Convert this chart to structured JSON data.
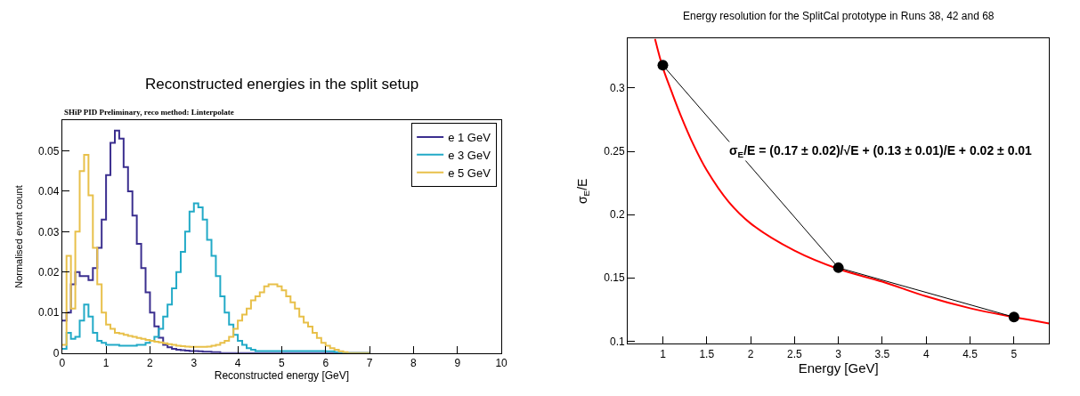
{
  "chart_data": [
    {
      "type": "histogram",
      "title": "Reconstructed energies in the split setup",
      "subtitle": "SHiP PID Preliminary, reco method: Linterpolate",
      "xlabel": "Reconstructed energy [GeV]",
      "ylabel": "Normalised event count",
      "legend": "top right",
      "bins": [
        0,
        0.1,
        0.2,
        0.3,
        0.4,
        0.5,
        0.6,
        0.7,
        0.8,
        0.9,
        1,
        1.1,
        1.2,
        1.3,
        1.4,
        1.5,
        1.6,
        1.7,
        1.8,
        1.9,
        2,
        2.1,
        2.2,
        2.3,
        2.4,
        2.5,
        2.6,
        2.7,
        2.8,
        2.9,
        3,
        3.1,
        3.2,
        3.3,
        3.4,
        3.5,
        3.6,
        3.7,
        3.8,
        3.9,
        4,
        4.1,
        4.2,
        4.3,
        4.4,
        4.5,
        4.6,
        4.7,
        4.8,
        4.9,
        5,
        5.1,
        5.2,
        5.3,
        5.4,
        5.5,
        5.6,
        5.7,
        5.8,
        5.9,
        6,
        6.1,
        6.2,
        6.3,
        6.4,
        6.5,
        6.6,
        6.7,
        6.8,
        6.9,
        7
      ],
      "xlim": [
        0,
        10
      ],
      "xticks": [
        0,
        1,
        2,
        3,
        4,
        5,
        6,
        7,
        8,
        9,
        10
      ],
      "ylim": [
        0,
        0.0575
      ],
      "yticks": [
        0,
        0.01,
        0.02,
        0.03,
        0.04,
        0.05
      ],
      "series": [
        {
          "name": "e 1 GeV",
          "color": "#3b2f8f",
          "values": [
            0.008,
            0.01,
            0.017,
            0.02,
            0.019,
            0.019,
            0.018,
            0.021,
            0.026,
            0.033,
            0.044,
            0.052,
            0.055,
            0.053,
            0.046,
            0.04,
            0.034,
            0.027,
            0.021,
            0.015,
            0.01,
            0.0066,
            0.0038,
            0.002,
            0.0014,
            0.001,
            0.0008,
            0.0007,
            0.0006,
            0.0005,
            0.0005,
            0.0004,
            0.0003,
            0.0003,
            0.0002,
            0.0002,
            0,
            0,
            0,
            0,
            0,
            0,
            0,
            0,
            0,
            0,
            0,
            0,
            0,
            0,
            0,
            0,
            0,
            0,
            0,
            0,
            0,
            0,
            0,
            0,
            0,
            0,
            0,
            0,
            0,
            0,
            0,
            0,
            0,
            0
          ]
        },
        {
          "name": "e 3 GeV",
          "color": "#22aac7",
          "values": [
            0.001,
            0.005,
            0.0035,
            0.004,
            0.008,
            0.012,
            0.009,
            0.005,
            0.003,
            0.0025,
            0.002,
            0.002,
            0.002,
            0.0018,
            0.0018,
            0.0018,
            0.0018,
            0.002,
            0.002,
            0.0025,
            0.003,
            0.004,
            0.006,
            0.009,
            0.012,
            0.016,
            0.02,
            0.025,
            0.03,
            0.035,
            0.037,
            0.036,
            0.033,
            0.028,
            0.024,
            0.019,
            0.014,
            0.01,
            0.007,
            0.0045,
            0.003,
            0.002,
            0.0012,
            0.0008,
            0.0005,
            0.0005,
            0.0005,
            0.0005,
            0.0005,
            0.0005,
            0.0005,
            0.0005,
            0.0005,
            0.0005,
            0.0005,
            0.0005,
            0.0005,
            0.0005,
            0.0005,
            0.0005,
            0.0004,
            0.0004,
            0.0002,
            0,
            0,
            0,
            0,
            0,
            0,
            0
          ]
        },
        {
          "name": "e 5 GeV",
          "color": "#e8c04a",
          "values": [
            0.002,
            0.024,
            0.011,
            0.03,
            0.045,
            0.049,
            0.039,
            0.026,
            0.017,
            0.01,
            0.007,
            0.006,
            0.005,
            0.0048,
            0.0045,
            0.0042,
            0.004,
            0.0037,
            0.0035,
            0.0032,
            0.003,
            0.0028,
            0.0026,
            0.0024,
            0.0022,
            0.002,
            0.0018,
            0.0017,
            0.0016,
            0.0015,
            0.0015,
            0.0015,
            0.0015,
            0.0016,
            0.0018,
            0.002,
            0.0025,
            0.003,
            0.004,
            0.006,
            0.008,
            0.0095,
            0.011,
            0.013,
            0.014,
            0.015,
            0.0165,
            0.017,
            0.017,
            0.0165,
            0.0155,
            0.014,
            0.0125,
            0.011,
            0.009,
            0.0075,
            0.0065,
            0.005,
            0.0037,
            0.0025,
            0.0018,
            0.0012,
            0.0008,
            0.0004,
            0.0002,
            0,
            0,
            0,
            0,
            0
          ]
        }
      ]
    },
    {
      "type": "line",
      "title": "Energy resolution for the SplitCal prototype in Runs 38, 42 and 68",
      "xlabel": "Energy [GeV]",
      "ylabel": "σ$_{E}$/E",
      "legend": false,
      "xlim": [
        0.6,
        5.4
      ],
      "xticks": [
        1,
        1.5,
        2,
        2.5,
        3,
        3.5,
        4,
        4.5,
        5
      ],
      "ylim": [
        0.098,
        0.339
      ],
      "yticks": [
        0.1,
        0.15,
        0.2,
        0.25,
        0.3
      ],
      "annotations": [
        "σ$_{E}$/E = (0.17 ± 0.02)/√E + (0.13 ± 0.01)/E + 0.02 ± 0.01"
      ],
      "series": [
        {
          "type": "line",
          "color": "#ff0000",
          "marker": "none",
          "x": [
            0.91,
            1,
            1.1,
            1.2,
            1.35,
            1.5,
            1.75,
            2,
            2.5,
            3,
            3.5,
            4,
            4.5,
            5,
            5.4
          ],
          "values": [
            0.339,
            0.316,
            0.297,
            0.279,
            0.255,
            0.235,
            0.21,
            0.193,
            0.1715,
            0.157,
            0.147,
            0.1354,
            0.126,
            0.119,
            0.114
          ]
        },
        {
          "type": "line",
          "color": "#000000",
          "marker": "circle",
          "x": [
            1,
            3,
            5
          ],
          "values": [
            0.318,
            0.158,
            0.119
          ]
        }
      ]
    }
  ]
}
